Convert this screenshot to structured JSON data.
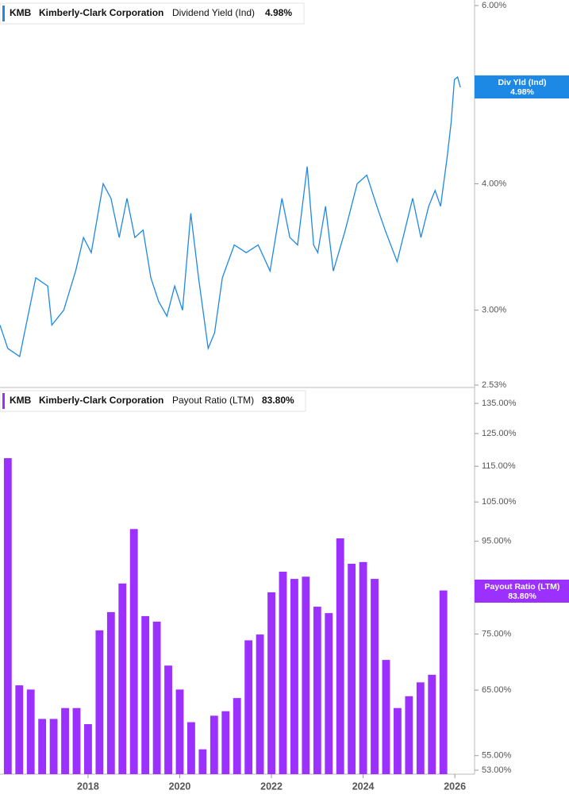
{
  "chart_data": [
    {
      "type": "line",
      "ticker": "KMB",
      "company": "Kimberly-Clark Corporation",
      "current_label": "4.98%",
      "badge_label": "Div Yld (Ind)",
      "log_scale": true,
      "ylim": [
        2.53,
        6
      ],
      "xlim": [
        2016.08,
        2026.43
      ],
      "yticks": [
        {
          "value": 6,
          "label": "6.00%"
        },
        {
          "value": 4,
          "label": "4.00%"
        },
        {
          "value": 3,
          "label": "3.00%"
        },
        {
          "value": 2.53,
          "label": "2.53%"
        }
      ],
      "x": [
        2016.08,
        2016.25,
        2016.51,
        2016.69,
        2016.86,
        2017.12,
        2017.21,
        2017.47,
        2017.73,
        2017.9,
        2018.07,
        2018.33,
        2018.5,
        2018.68,
        2018.85,
        2019.02,
        2019.2,
        2019.37,
        2019.54,
        2019.72,
        2019.89,
        2020.06,
        2020.24,
        2020.41,
        2020.62,
        2020.76,
        2020.93,
        2021.19,
        2021.45,
        2021.71,
        2021.97,
        2022.23,
        2022.4,
        2022.57,
        2022.78,
        2022.92,
        2023.01,
        2023.18,
        2023.35,
        2023.61,
        2023.87,
        2024.08,
        2024.3,
        2024.48,
        2024.74,
        2024.91,
        2025.08,
        2025.26,
        2025.43,
        2025.57,
        2025.69,
        2025.83,
        2025.92,
        2025.99,
        2026.06,
        2026.12
      ],
      "series": [
        {
          "name": "Dividend Yield (Ind)",
          "color": "#1e88e5",
          "values": [
            2.9,
            2.75,
            2.7,
            2.96,
            3.23,
            3.17,
            2.9,
            3.0,
            3.28,
            3.54,
            3.42,
            4.0,
            3.87,
            3.54,
            3.87,
            3.54,
            3.6,
            3.23,
            3.06,
            2.96,
            3.17,
            3.0,
            3.74,
            3.23,
            2.75,
            2.85,
            3.23,
            3.48,
            3.42,
            3.48,
            3.28,
            3.87,
            3.54,
            3.48,
            4.16,
            3.48,
            3.42,
            3.8,
            3.28,
            3.6,
            4.0,
            4.08,
            3.8,
            3.6,
            3.35,
            3.6,
            3.87,
            3.54,
            3.8,
            3.94,
            3.8,
            4.24,
            4.6,
            5.07,
            5.1,
            4.98
          ]
        }
      ]
    },
    {
      "type": "bar",
      "ticker": "KMB",
      "company": "Kimberly-Clark Corporation",
      "current_label": "83.80%",
      "badge_label": "Payout Ratio (LTM)",
      "log_scale": true,
      "ylim": [
        53,
        135
      ],
      "xlim": [
        2016.08,
        2026.43
      ],
      "yticks": [
        {
          "value": 135,
          "label": "135.00%"
        },
        {
          "value": 125,
          "label": "125.00%"
        },
        {
          "value": 115,
          "label": "115.00%"
        },
        {
          "value": 105,
          "label": "105.00%"
        },
        {
          "value": 95,
          "label": "95.00%"
        },
        {
          "value": 75,
          "label": "75.00%"
        },
        {
          "value": 65,
          "label": "65.00%"
        },
        {
          "value": 55,
          "label": "55.00%"
        },
        {
          "value": 53,
          "label": "53.00%"
        }
      ],
      "xticks": [
        2018,
        2020,
        2022,
        2024,
        2026
      ],
      "x": [
        2016.25,
        2016.5,
        2016.75,
        2017,
        2017.25,
        2017.5,
        2017.75,
        2018,
        2018.25,
        2018.5,
        2018.75,
        2019,
        2019.25,
        2019.5,
        2019.75,
        2020,
        2020.25,
        2020.5,
        2020.75,
        2021,
        2021.25,
        2021.5,
        2021.75,
        2022,
        2022.25,
        2022.5,
        2022.75,
        2023,
        2023.25,
        2023.5,
        2023.75,
        2024,
        2024.25,
        2024.5,
        2024.75,
        2025,
        2025.25,
        2025.5,
        2025.75
      ],
      "series": [
        {
          "name": "Payout Ratio (LTM)",
          "color": "#9b30ff",
          "values": [
            117.4,
            65.8,
            65.1,
            60.4,
            60.4,
            62.1,
            62.1,
            59.6,
            75.7,
            79.3,
            85.3,
            98.0,
            78.5,
            77.4,
            69.2,
            65.1,
            59.9,
            55.9,
            60.9,
            61.6,
            63.7,
            73.8,
            74.9,
            83.4,
            87.9,
            86.3,
            86.8,
            80.4,
            79.1,
            95.7,
            89.7,
            90.1,
            86.3,
            70.2,
            62.1,
            64.0,
            66.3,
            67.6,
            83.8
          ]
        }
      ]
    }
  ]
}
